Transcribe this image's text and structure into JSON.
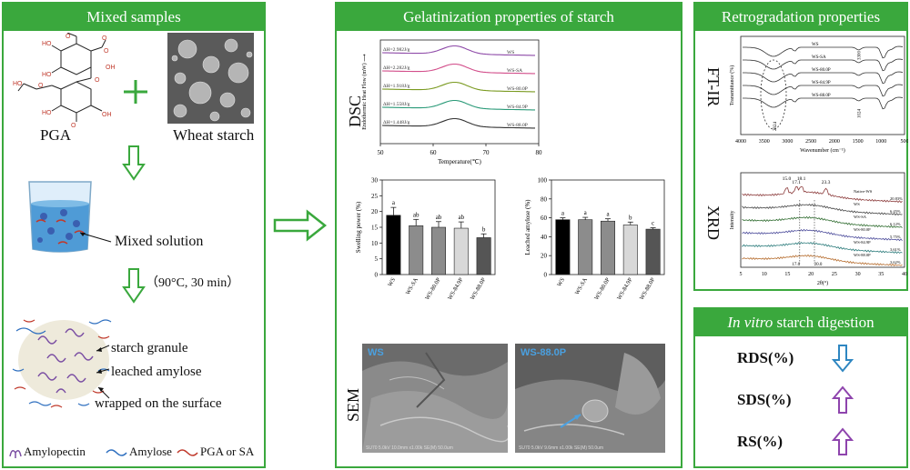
{
  "panels": {
    "mixed": {
      "title": "Mixed samples"
    },
    "gel": {
      "title": "Gelatinization properties of starch"
    },
    "retro": {
      "title": "Retrogradation properties"
    },
    "digest": {
      "title_italic": "In vitro",
      "title_rest": " starch digestion"
    }
  },
  "mixed": {
    "pga_label": "PGA",
    "wheat_label": "Wheat starch",
    "mixed_solution": "Mixed solution",
    "conditions": "（90°C, 30 min）",
    "starch_granule": "starch granule",
    "leached_amylose": "leached amylose",
    "wrapped": "wrapped on the surface",
    "legend": {
      "amylopectin": "Amylopectin",
      "amylose": "Amylose",
      "pga_sa": "PGA or SA"
    }
  },
  "dsc": {
    "side_label": "DSC",
    "ylabel": "Endothermic Heat Flow (mW) ⟶",
    "xlabel": "Temperature(℃)",
    "xticks": [
      "50",
      "60",
      "70",
      "80"
    ],
    "curves": [
      {
        "name": "WS",
        "dh": "ΔH=2.982J/g",
        "color": "#8e4aa8"
      },
      {
        "name": "WS-SA",
        "dh": "ΔH=2.282J/g",
        "color": "#d24d8a"
      },
      {
        "name": "WS-80.0P",
        "dh": "ΔH=1.918J/g",
        "color": "#7a9a20"
      },
      {
        "name": "WS-84.9P",
        "dh": "ΔH=1.558J/g",
        "color": "#2a9a78"
      },
      {
        "name": "WS-88.0P",
        "dh": "ΔH=1.448J/g",
        "color": "#333333"
      }
    ]
  },
  "swelling": {
    "ylabel": "Swelling power (%)",
    "yticks": [
      "0",
      "5",
      "10",
      "15",
      "20",
      "25",
      "30"
    ],
    "ymax": 30,
    "categories": [
      "WS",
      "WS-SA",
      "WS-80.0P",
      "WS-84.9P",
      "WS-88.0P"
    ],
    "values": [
      18.8,
      15.5,
      15.0,
      14.7,
      11.7
    ],
    "errors": [
      2.5,
      2.0,
      1.8,
      2.0,
      1.2
    ],
    "letters": [
      "a",
      "ab",
      "ab",
      "ab",
      "b"
    ],
    "colors": [
      "#000000",
      "#8c8c8c",
      "#8c8c8c",
      "#d8d8d8",
      "#555555"
    ]
  },
  "leached": {
    "ylabel": "Leached amylose (%)",
    "yticks": [
      "0",
      "20",
      "40",
      "60",
      "80",
      "100"
    ],
    "ymax": 100,
    "categories": [
      "WS",
      "WS-SA",
      "WS-80.0P",
      "WS-84.9P",
      "WS-88.0P"
    ],
    "values": [
      58,
      58,
      56.5,
      52.5,
      48
    ],
    "errors": [
      2,
      2.5,
      2.5,
      3,
      1.5
    ],
    "letters": [
      "a",
      "a",
      "a",
      "b",
      "c"
    ],
    "colors": [
      "#000000",
      "#8c8c8c",
      "#8c8c8c",
      "#d8d8d8",
      "#555555"
    ]
  },
  "sem": {
    "side_label": "SEM",
    "left_tag": "WS",
    "right_tag": "WS-88.0P",
    "left_foot": "SU70 5.0kV 10.0mm x1.00k SE(M)                50.0um",
    "right_foot": "SU70 5.0kV 9.6mm x1.00k SE(M)                50.0um"
  },
  "ftir": {
    "side_label": "FT-IR",
    "ylabel": "Transmittance (%)",
    "xlabel": "Wavenumber (cm⁻¹)",
    "xticks": [
      "4000",
      "3500",
      "3000",
      "2500",
      "2000",
      "1500",
      "1000",
      "500"
    ],
    "curves": [
      "WS",
      "WS-SA",
      "WS-80.0P",
      "WS-84.9P",
      "WS-88.0P"
    ],
    "peak_labels": [
      "3300",
      "2924",
      "1024"
    ]
  },
  "xrd": {
    "side_label": "XRD",
    "ylabel": "Intensity",
    "xlabel": "2θ(°)",
    "xticks": [
      "5",
      "10",
      "15",
      "20",
      "25",
      "30",
      "35",
      "40"
    ],
    "peak_labels": [
      "15.0",
      "17.1",
      "18.1",
      "23.3"
    ],
    "bottom_labels": [
      "17.6",
      "20.0"
    ],
    "curves": [
      {
        "name": "Native-WS",
        "pct": "20.83%",
        "color": "#8b3a3a"
      },
      {
        "name": "WS",
        "pct": "6.45%",
        "color": "#444444"
      },
      {
        "name": "WS-SA",
        "pct": "6.12%",
        "color": "#2e6b2e"
      },
      {
        "name": "WS-80.0P",
        "pct": "5.75%",
        "color": "#4a4a9a"
      },
      {
        "name": "WS-84.9P",
        "pct": "3.61%",
        "color": "#2a7a7a"
      },
      {
        "name": "WS-88.0P",
        "pct": "3.62%",
        "color": "#b56a2a"
      }
    ]
  },
  "digestion": {
    "items": [
      {
        "label": "RDS(%)",
        "direction": "down",
        "color": "#2e86c1"
      },
      {
        "label": "SDS(%)",
        "direction": "up",
        "color": "#8e44ad"
      },
      {
        "label": "RS(%)",
        "direction": "up",
        "color": "#8e44ad"
      }
    ]
  }
}
